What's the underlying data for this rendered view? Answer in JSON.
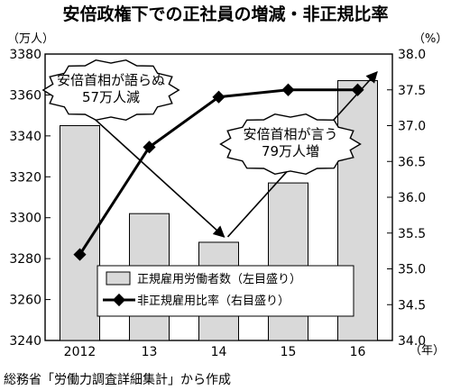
{
  "page_title": "安倍政権下での正社員の増減・非正規比率",
  "source_note": "総務省「労働力調査詳細集計」から作成",
  "callouts": {
    "left": [
      "安倍首相が語らぬ",
      "57万人減"
    ],
    "right": [
      "安倍首相が言う",
      "79万人増"
    ]
  },
  "colors": {
    "bar_fill": "#d9d9d9",
    "bar_stroke": "#000000",
    "line": "#000000"
  },
  "chart_data": {
    "type": "bar+line",
    "title": "安倍政権下での正社員の増減・非正規比率",
    "categories": [
      "2012",
      "13",
      "14",
      "15",
      "16"
    ],
    "x_unit": "（年）",
    "y_left": {
      "unit": "（万人）",
      "ylim": [
        3240,
        3380
      ],
      "ticks": [
        3240,
        3260,
        3280,
        3300,
        3320,
        3340,
        3360,
        3380
      ]
    },
    "y_right": {
      "unit": "（%）",
      "ylim": [
        34.0,
        38.0
      ],
      "ticks": [
        "34.0",
        "34.5",
        "35.0",
        "35.5",
        "36.0",
        "36.5",
        "37.0",
        "37.5",
        "38.0"
      ]
    },
    "series": [
      {
        "name": "正規雇用労働者数（左目盛り）",
        "type": "bar",
        "axis": "left",
        "values": [
          3345,
          3302,
          3288,
          3317,
          3367
        ]
      },
      {
        "name": "非正規雇用比率（右目盛り）",
        "type": "line",
        "axis": "right",
        "values": [
          35.2,
          36.7,
          37.4,
          37.5,
          37.5
        ]
      }
    ],
    "grid": false,
    "legend_position": "bottom-right"
  }
}
